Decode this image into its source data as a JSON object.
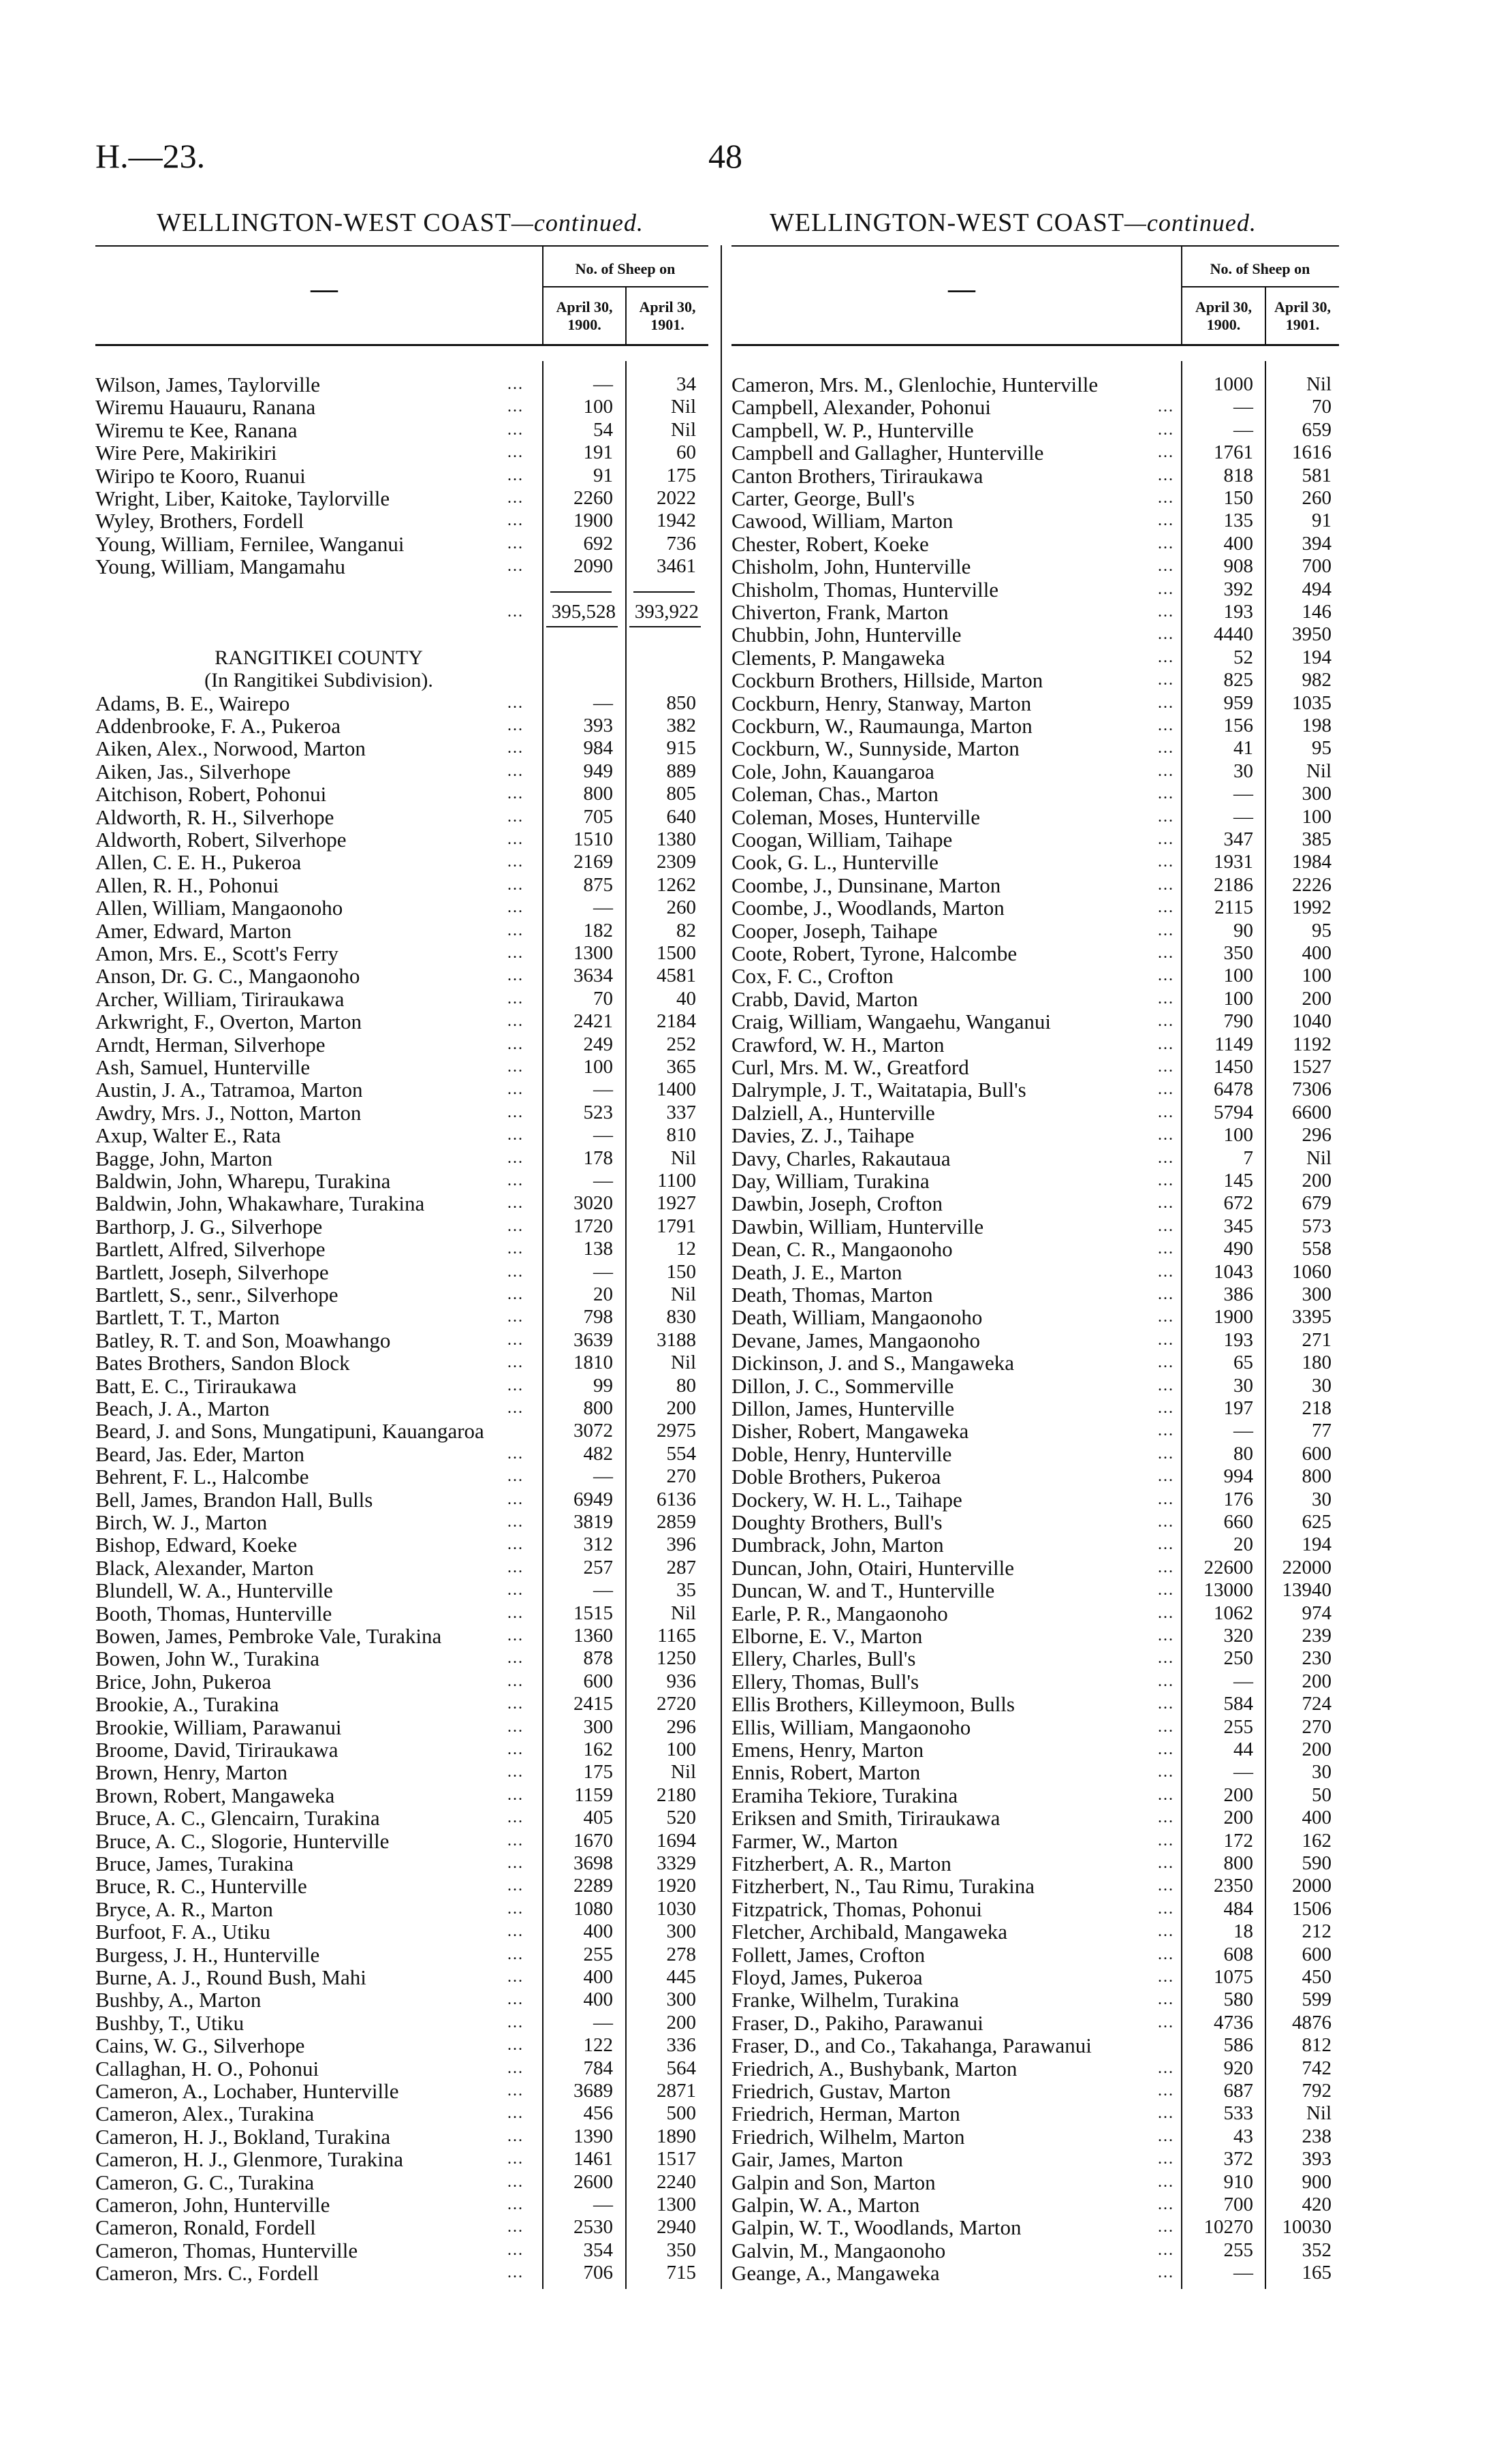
{
  "header": {
    "reference": "H.—23.",
    "page_number": "48"
  },
  "section_title": "WELLINGTON-WEST COAST",
  "section_title_suffix": "—continued.",
  "table_header": {
    "group": "No. of Sheep on",
    "col1": "April 30, 1900.",
    "col2": "April 30, 1901.",
    "name_col": "—"
  },
  "leader": "...",
  "left": {
    "rows_before_total": [
      [
        "Wilson, James, Taylorville",
        "—",
        "34"
      ],
      [
        "Wiremu Hauauru, Ranana",
        "100",
        "Nil"
      ],
      [
        "Wiremu te Kee, Ranana",
        "54",
        "Nil"
      ],
      [
        "Wire Pere, Makirikiri",
        "191",
        "60"
      ],
      [
        "Wiripo te Kooro, Ruanui",
        "91",
        "175"
      ],
      [
        "Wright, Liber, Kaitoke, Taylorville",
        "2260",
        "2022"
      ],
      [
        "Wyley, Brothers, Fordell",
        "1900",
        "1942"
      ],
      [
        "Young, William, Fernilee, Wanganui",
        "692",
        "736"
      ],
      [
        "Young, William, Mangamahu",
        "2090",
        "3461"
      ]
    ],
    "total": {
      "col1": "395,528",
      "col2": "393,922"
    },
    "county_title": "RANGITIKEI COUNTY",
    "county_subtitle": "(In Rangitikei Subdivision).",
    "rows_after": [
      [
        "Adams, B. E., Wairepo",
        "—",
        "850"
      ],
      [
        "Addenbrooke, F. A., Pukeroa",
        "393",
        "382"
      ],
      [
        "Aiken, Alex., Norwood, Marton",
        "984",
        "915"
      ],
      [
        "Aiken, Jas., Silverhope",
        "949",
        "889"
      ],
      [
        "Aitchison, Robert, Pohonui",
        "800",
        "805"
      ],
      [
        "Aldworth, R. H., Silverhope",
        "705",
        "640"
      ],
      [
        "Aldworth, Robert, Silverhope",
        "1510",
        "1380"
      ],
      [
        "Allen, C. E. H., Pukeroa",
        "2169",
        "2309"
      ],
      [
        "Allen, R. H., Pohonui",
        "875",
        "1262"
      ],
      [
        "Allen, William, Mangaonoho",
        "—",
        "260"
      ],
      [
        "Amer, Edward, Marton",
        "182",
        "82"
      ],
      [
        "Amon, Mrs. E., Scott's Ferry",
        "1300",
        "1500"
      ],
      [
        "Anson, Dr. G. C., Mangaonoho",
        "3634",
        "4581"
      ],
      [
        "Archer, William, Tiriraukawa",
        "70",
        "40"
      ],
      [
        "Arkwright, F., Overton, Marton",
        "2421",
        "2184"
      ],
      [
        "Arndt, Herman, Silverhope",
        "249",
        "252"
      ],
      [
        "Ash, Samuel, Hunterville",
        "100",
        "365"
      ],
      [
        "Austin, J. A., Tatramoa, Marton",
        "—",
        "1400"
      ],
      [
        "Awdry, Mrs. J., Notton, Marton",
        "523",
        "337"
      ],
      [
        "Axup, Walter E., Rata",
        "—",
        "810"
      ],
      [
        "Bagge, John, Marton",
        "178",
        "Nil"
      ],
      [
        "Baldwin, John, Wharepu, Turakina",
        "—",
        "1100"
      ],
      [
        "Baldwin, John, Whakawhare, Turakina",
        "3020",
        "1927"
      ],
      [
        "Barthorp, J. G., Silverhope",
        "1720",
        "1791"
      ],
      [
        "Bartlett, Alfred, Silverhope",
        "138",
        "12"
      ],
      [
        "Bartlett, Joseph, Silverhope",
        "—",
        "150"
      ],
      [
        "Bartlett, S., senr., Silverhope",
        "20",
        "Nil"
      ],
      [
        "Bartlett, T. T., Marton",
        "798",
        "830"
      ],
      [
        "Batley, R. T. and Son, Moawhango",
        "3639",
        "3188"
      ],
      [
        "Bates Brothers, Sandon Block",
        "1810",
        "Nil"
      ],
      [
        "Batt, E. C., Tiriraukawa",
        "99",
        "80"
      ],
      [
        "Beach, J. A., Marton",
        "800",
        "200"
      ],
      [
        "Beard, J. and Sons, Mungatipuni, Kauangaroa",
        "3072",
        "2975"
      ],
      [
        "Beard, Jas. Eder, Marton",
        "482",
        "554"
      ],
      [
        "Behrent, F. L., Halcombe",
        "—",
        "270"
      ],
      [
        "Bell, James, Brandon Hall, Bulls",
        "6949",
        "6136"
      ],
      [
        "Birch, W. J., Marton",
        "3819",
        "2859"
      ],
      [
        "Bishop, Edward, Koeke",
        "312",
        "396"
      ],
      [
        "Black, Alexander, Marton",
        "257",
        "287"
      ],
      [
        "Blundell, W. A., Hunterville",
        "—",
        "35"
      ],
      [
        "Booth, Thomas, Hunterville",
        "1515",
        "Nil"
      ],
      [
        "Bowen, James, Pembroke Vale, Turakina",
        "1360",
        "1165"
      ],
      [
        "Bowen, John W., Turakina",
        "878",
        "1250"
      ],
      [
        "Brice, John, Pukeroa",
        "600",
        "936"
      ],
      [
        "Brookie, A., Turakina",
        "2415",
        "2720"
      ],
      [
        "Brookie, William, Parawanui",
        "300",
        "296"
      ],
      [
        "Broome, David, Tiriraukawa",
        "162",
        "100"
      ],
      [
        "Brown, Henry, Marton",
        "175",
        "Nil"
      ],
      [
        "Brown, Robert, Mangaweka",
        "1159",
        "2180"
      ],
      [
        "Bruce, A. C., Glencairn, Turakina",
        "405",
        "520"
      ],
      [
        "Bruce, A. C., Slogorie, Hunterville",
        "1670",
        "1694"
      ],
      [
        "Bruce, James, Turakina",
        "3698",
        "3329"
      ],
      [
        "Bruce, R. C., Hunterville",
        "2289",
        "1920"
      ],
      [
        "Bryce, A. R., Marton",
        "1080",
        "1030"
      ],
      [
        "Burfoot, F. A., Utiku",
        "400",
        "300"
      ],
      [
        "Burgess, J. H., Hunterville",
        "255",
        "278"
      ],
      [
        "Burne, A. J., Round Bush, Mahi",
        "400",
        "445"
      ],
      [
        "Bushby, A., Marton",
        "400",
        "300"
      ],
      [
        "Bushby, T., Utiku",
        "—",
        "200"
      ],
      [
        "Cains, W. G., Silverhope",
        "122",
        "336"
      ],
      [
        "Callaghan, H. O., Pohonui",
        "784",
        "564"
      ],
      [
        "Cameron, A., Lochaber, Hunterville",
        "3689",
        "2871"
      ],
      [
        "Cameron, Alex., Turakina",
        "456",
        "500"
      ],
      [
        "Cameron, H. J., Bokland, Turakina",
        "1390",
        "1890"
      ],
      [
        "Cameron, H. J., Glenmore, Turakina",
        "1461",
        "1517"
      ],
      [
        "Cameron, G. C., Turakina",
        "2600",
        "2240"
      ],
      [
        "Cameron, John, Hunterville",
        "—",
        "1300"
      ],
      [
        "Cameron, Ronald, Fordell",
        "2530",
        "2940"
      ],
      [
        "Cameron, Thomas, Hunterville",
        "354",
        "350"
      ],
      [
        "Cameron, Mrs. C., Fordell",
        "706",
        "715"
      ]
    ]
  },
  "right": {
    "rows": [
      [
        "Cameron, Mrs. M., Glenlochie, Hunterville",
        "1000",
        "Nil"
      ],
      [
        "Campbell, Alexander, Pohonui",
        "—",
        "70"
      ],
      [
        "Campbell, W. P., Hunterville",
        "—",
        "659"
      ],
      [
        "Campbell and Gallagher, Hunterville",
        "1761",
        "1616"
      ],
      [
        "Canton Brothers, Tiriraukawa",
        "818",
        "581"
      ],
      [
        "Carter, George, Bull's",
        "150",
        "260"
      ],
      [
        "Cawood, William, Marton",
        "135",
        "91"
      ],
      [
        "Chester, Robert, Koeke",
        "400",
        "394"
      ],
      [
        "Chisholm, John, Hunterville",
        "908",
        "700"
      ],
      [
        "Chisholm, Thomas, Hunterville",
        "392",
        "494"
      ],
      [
        "Chiverton, Frank, Marton",
        "193",
        "146"
      ],
      [
        "Chubbin, John, Hunterville",
        "4440",
        "3950"
      ],
      [
        "Clements, P. Mangaweka",
        "52",
        "194"
      ],
      [
        "Cockburn Brothers, Hillside, Marton",
        "825",
        "982"
      ],
      [
        "Cockburn, Henry, Stanway, Marton",
        "959",
        "1035"
      ],
      [
        "Cockburn, W., Raumaunga, Marton",
        "156",
        "198"
      ],
      [
        "Cockburn, W., Sunnyside, Marton",
        "41",
        "95"
      ],
      [
        "Cole, John, Kauangaroa",
        "30",
        "Nil"
      ],
      [
        "Coleman, Chas., Marton",
        "—",
        "300"
      ],
      [
        "Coleman, Moses, Hunterville",
        "—",
        "100"
      ],
      [
        "Coogan, William, Taihape",
        "347",
        "385"
      ],
      [
        "Cook, G. L., Hunterville",
        "1931",
        "1984"
      ],
      [
        "Coombe, J., Dunsinane, Marton",
        "2186",
        "2226"
      ],
      [
        "Coombe, J., Woodlands, Marton",
        "2115",
        "1992"
      ],
      [
        "Cooper, Joseph, Taihape",
        "90",
        "95"
      ],
      [
        "Coote, Robert, Tyrone, Halcombe",
        "350",
        "400"
      ],
      [
        "Cox, F. C., Crofton",
        "100",
        "100"
      ],
      [
        "Crabb, David, Marton",
        "100",
        "200"
      ],
      [
        "Craig, William, Wangaehu, Wanganui",
        "790",
        "1040"
      ],
      [
        "Crawford, W. H., Marton",
        "1149",
        "1192"
      ],
      [
        "Curl, Mrs. M. W., Greatford",
        "1450",
        "1527"
      ],
      [
        "Dalrymple, J. T., Waitatapia, Bull's",
        "6478",
        "7306"
      ],
      [
        "Dalziell, A., Hunterville",
        "5794",
        "6600"
      ],
      [
        "Davies, Z. J., Taihape",
        "100",
        "296"
      ],
      [
        "Davy, Charles, Rakautaua",
        "7",
        "Nil"
      ],
      [
        "Day, William, Turakina",
        "145",
        "200"
      ],
      [
        "Dawbin, Joseph, Crofton",
        "672",
        "679"
      ],
      [
        "Dawbin, William, Hunterville",
        "345",
        "573"
      ],
      [
        "Dean, C. R., Mangaonoho",
        "490",
        "558"
      ],
      [
        "Death, J. E., Marton",
        "1043",
        "1060"
      ],
      [
        "Death, Thomas, Marton",
        "386",
        "300"
      ],
      [
        "Death, William, Mangaonoho",
        "1900",
        "3395"
      ],
      [
        "Devane, James, Mangaonoho",
        "193",
        "271"
      ],
      [
        "Dickinson, J. and S., Mangaweka",
        "65",
        "180"
      ],
      [
        "Dillon, J. C., Sommerville",
        "30",
        "30"
      ],
      [
        "Dillon, James, Hunterville",
        "197",
        "218"
      ],
      [
        "Disher, Robert, Mangaweka",
        "—",
        "77"
      ],
      [
        "Doble, Henry, Hunterville",
        "80",
        "600"
      ],
      [
        "Doble Brothers, Pukeroa",
        "994",
        "800"
      ],
      [
        "Dockery, W. H. L., Taihape",
        "176",
        "30"
      ],
      [
        "Doughty Brothers, Bull's",
        "660",
        "625"
      ],
      [
        "Dumbrack, John, Marton",
        "20",
        "194"
      ],
      [
        "Duncan, John, Otairi, Hunterville",
        "22600",
        "22000"
      ],
      [
        "Duncan, W. and T., Hunterville",
        "13000",
        "13940"
      ],
      [
        "Earle, P. R., Mangaonoho",
        "1062",
        "974"
      ],
      [
        "Elborne, E. V., Marton",
        "320",
        "239"
      ],
      [
        "Ellery, Charles, Bull's",
        "250",
        "230"
      ],
      [
        "Ellery, Thomas, Bull's",
        "—",
        "200"
      ],
      [
        "Ellis Brothers, Killeymoon, Bulls",
        "584",
        "724"
      ],
      [
        "Ellis, William, Mangaonoho",
        "255",
        "270"
      ],
      [
        "Emens, Henry, Marton",
        "44",
        "200"
      ],
      [
        "Ennis, Robert, Marton",
        "—",
        "30"
      ],
      [
        "Eramiha Tekiore, Turakina",
        "200",
        "50"
      ],
      [
        "Eriksen and Smith, Tiriraukawa",
        "200",
        "400"
      ],
      [
        "Farmer, W., Marton",
        "172",
        "162"
      ],
      [
        "Fitzherbert, A. R., Marton",
        "800",
        "590"
      ],
      [
        "Fitzherbert, N., Tau Rimu, Turakina",
        "2350",
        "2000"
      ],
      [
        "Fitzpatrick, Thomas, Pohonui",
        "484",
        "1506"
      ],
      [
        "Fletcher, Archibald, Mangaweka",
        "18",
        "212"
      ],
      [
        "Follett, James, Crofton",
        "608",
        "600"
      ],
      [
        "Floyd, James, Pukeroa",
        "1075",
        "450"
      ],
      [
        "Franke, Wilhelm, Turakina",
        "580",
        "599"
      ],
      [
        "Fraser, D., Pakiho, Parawanui",
        "4736",
        "4876"
      ],
      [
        "Fraser, D., and Co., Takahanga, Parawanui",
        "586",
        "812"
      ],
      [
        "Friedrich, A., Bushybank, Marton",
        "920",
        "742"
      ],
      [
        "Friedrich, Gustav, Marton",
        "687",
        "792"
      ],
      [
        "Friedrich, Herman, Marton",
        "533",
        "Nil"
      ],
      [
        "Friedrich, Wilhelm, Marton",
        "43",
        "238"
      ],
      [
        "Gair, James, Marton",
        "372",
        "393"
      ],
      [
        "Galpin and Son, Marton",
        "910",
        "900"
      ],
      [
        "Galpin, W. A., Marton",
        "700",
        "420"
      ],
      [
        "Galpin, W. T., Woodlands, Marton",
        "10270",
        "10030"
      ],
      [
        "Galvin, M., Mangaonoho",
        "255",
        "352"
      ],
      [
        "Geange, A., Mangaweka",
        "—",
        "165"
      ]
    ]
  }
}
